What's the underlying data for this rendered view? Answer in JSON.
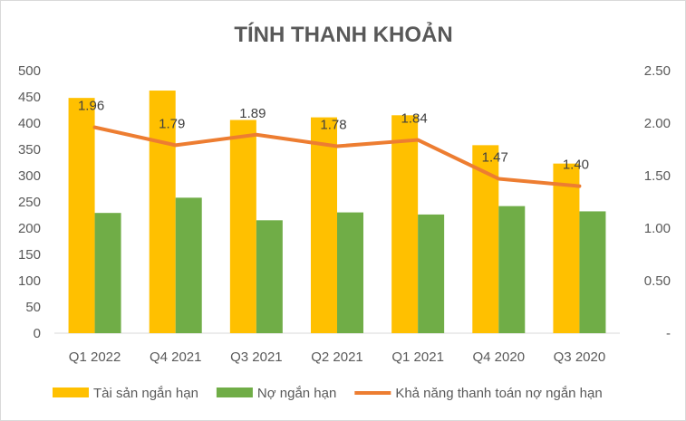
{
  "chart_data": {
    "type": "bar",
    "title": "TÍNH THANH KHOẢN",
    "categories": [
      "Q1 2022",
      "Q4 2021",
      "Q3 2021",
      "Q2 2021",
      "Q1 2021",
      "Q4 2020",
      "Q3 2020"
    ],
    "series": [
      {
        "name": "Tài sản ngắn hạn",
        "type": "bar",
        "axis": "left",
        "color": "#FFC000",
        "values": [
          448,
          462,
          406,
          411,
          415,
          358,
          323
        ]
      },
      {
        "name": "Nợ ngắn hạn",
        "type": "bar",
        "axis": "left",
        "color": "#70AD47",
        "values": [
          229,
          258,
          215,
          230,
          226,
          242,
          232
        ]
      },
      {
        "name": "Khả năng thanh toán nợ ngắn hạn",
        "type": "line",
        "axis": "right",
        "color": "#ED7D31",
        "values": [
          1.96,
          1.79,
          1.89,
          1.78,
          1.84,
          1.47,
          1.4
        ],
        "labels": [
          "1.96",
          "1.79",
          "1.89",
          "1.78",
          "1.84",
          "1.47",
          "1.40"
        ]
      }
    ],
    "y_left": {
      "min": 0,
      "max": 500,
      "ticks": [
        "500",
        "450",
        "400",
        "350",
        "300",
        "250",
        "200",
        "150",
        "100",
        "50",
        "0"
      ]
    },
    "y_right": {
      "min": 0,
      "max": 2.5,
      "ticks": [
        "2.50",
        "2.00",
        "1.50",
        "1.00",
        "0.50",
        "-"
      ]
    },
    "grid": false,
    "legend": "bottom"
  }
}
